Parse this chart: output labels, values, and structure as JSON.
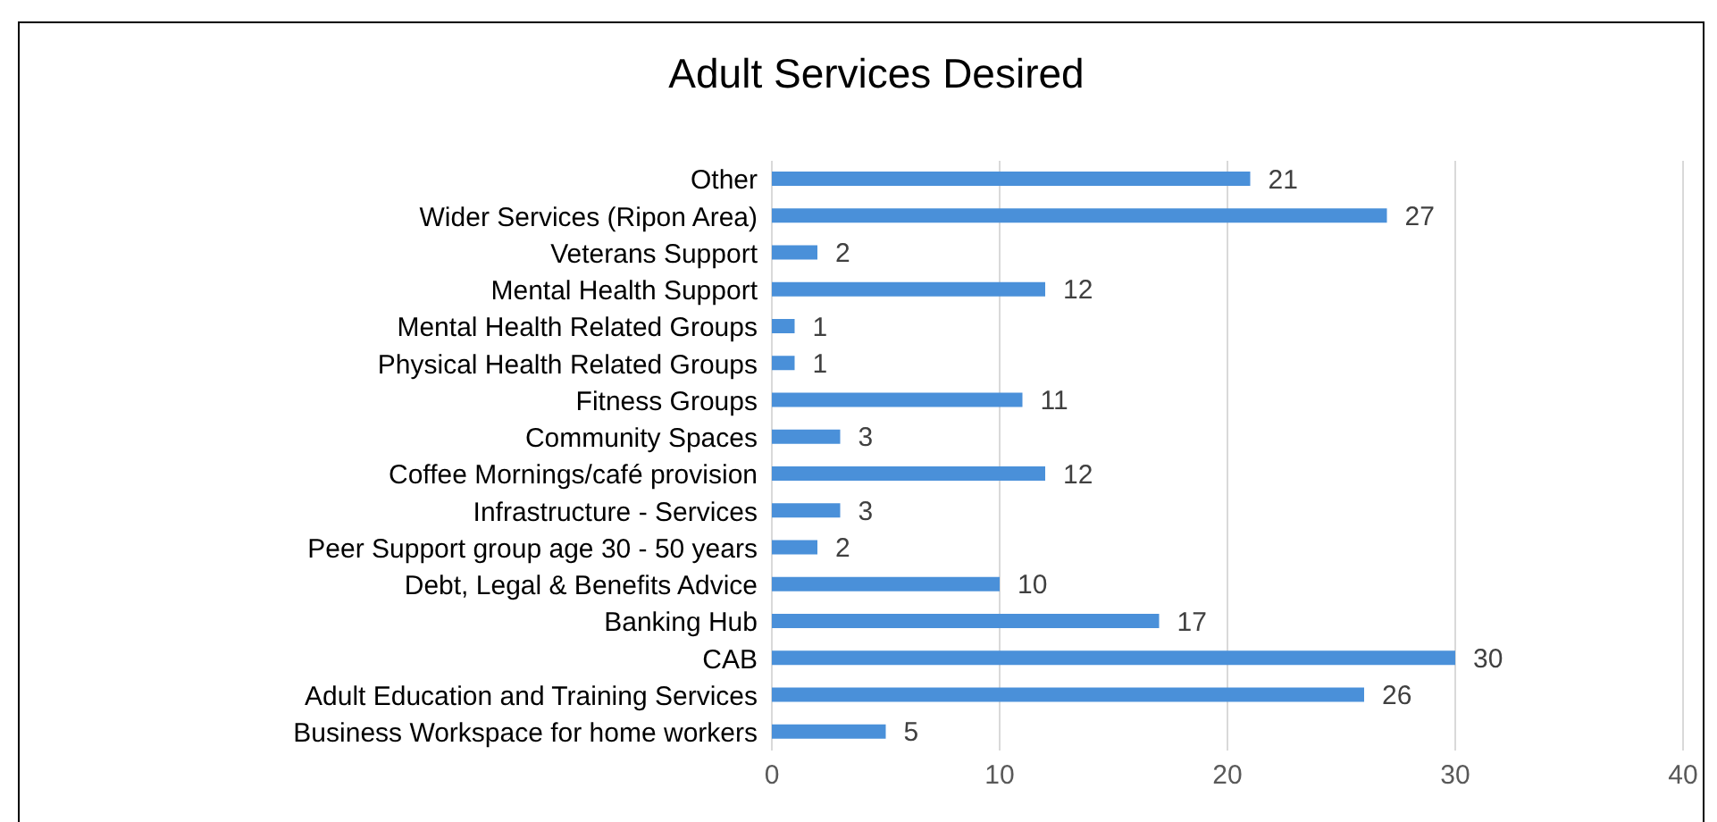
{
  "chart_data": {
    "type": "bar",
    "orientation": "horizontal",
    "title": "Adult Services Desired",
    "categories": [
      "Other",
      "Wider Services (Ripon Area)",
      "Veterans Support",
      "Mental Health Support",
      "Mental Health Related Groups",
      "Physical Health Related Groups",
      "Fitness Groups",
      "Community Spaces",
      "Coffee Mornings/café provision",
      "Infrastructure - Services",
      "Peer Support group age 30 - 50 years",
      "Debt, Legal & Benefits Advice",
      "Banking Hub",
      "CAB",
      "Adult Education and Training Services",
      "Business Workspace for home workers"
    ],
    "values": [
      21,
      27,
      2,
      12,
      1,
      1,
      11,
      3,
      12,
      3,
      2,
      10,
      17,
      30,
      26,
      5
    ],
    "color": "#4a90d9",
    "xlim": [
      0,
      40
    ],
    "xticks": [
      0,
      10,
      20,
      30,
      40
    ],
    "grid": "x",
    "data_labels": true
  }
}
